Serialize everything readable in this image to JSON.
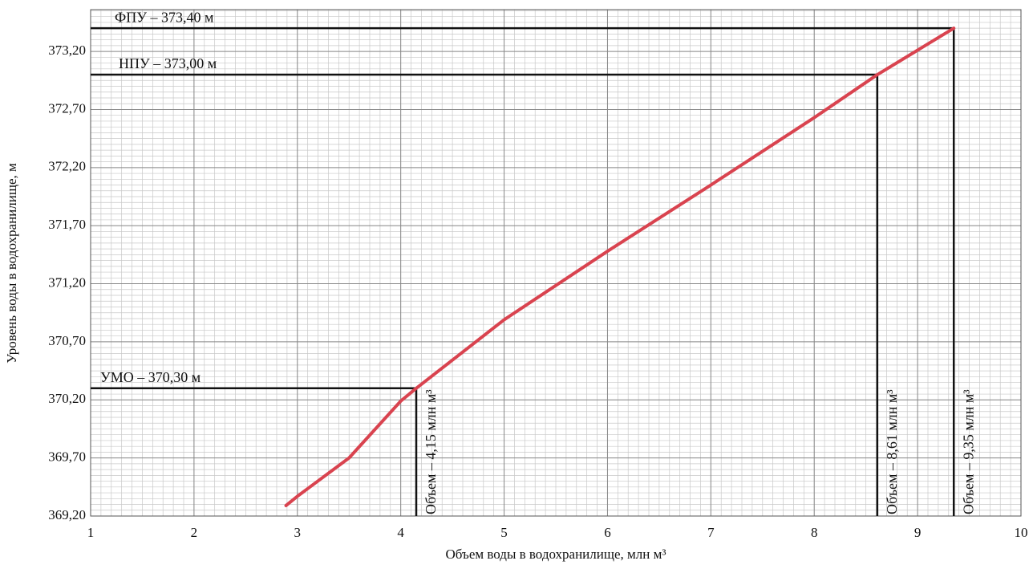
{
  "chart_data": {
    "type": "line",
    "x_label": "Объем воды в водохранилище, млн м³",
    "y_label": "Уровень воды в водохранилище, м",
    "xlim": [
      1,
      10
    ],
    "ylim": [
      369.2,
      373.56
    ],
    "xticks": [
      1,
      2,
      3,
      4,
      5,
      6,
      7,
      8,
      9,
      10
    ],
    "yticks": [
      {
        "value": 369.2,
        "label": "369,20"
      },
      {
        "value": 369.7,
        "label": "369,70"
      },
      {
        "value": 370.2,
        "label": "370,20"
      },
      {
        "value": 370.7,
        "label": "370,70"
      },
      {
        "value": 371.2,
        "label": "371,20"
      },
      {
        "value": 371.7,
        "label": "371,70"
      },
      {
        "value": 372.2,
        "label": "372,20"
      },
      {
        "value": 372.7,
        "label": "372,70"
      },
      {
        "value": 373.2,
        "label": "373,20"
      }
    ],
    "grid": true,
    "series": [
      {
        "color": "#d9434f",
        "x": [
          2.89,
          3,
          3.5,
          4,
          4.15,
          5,
          6,
          7,
          8,
          8.61,
          9.35
        ],
        "values": [
          369.29,
          369.37,
          369.7,
          370.19,
          370.3,
          370.89,
          371.48,
          372.05,
          372.63,
          373.0,
          373.4
        ]
      }
    ],
    "reference_lines": [
      {
        "level_label": "ФПУ – 373,40 м",
        "volume_label": "Объем – 9,35 млн м³",
        "x": 9.35,
        "y": 373.4
      },
      {
        "level_label": "НПУ – 373,00 м",
        "volume_label": "Объем – 8,61 млн м³",
        "x": 8.61,
        "y": 373.0
      },
      {
        "level_label": "УМО – 370,30 м",
        "volume_label": "Объем – 4,15 млн м³",
        "x": 4.15,
        "y": 370.3
      }
    ]
  }
}
